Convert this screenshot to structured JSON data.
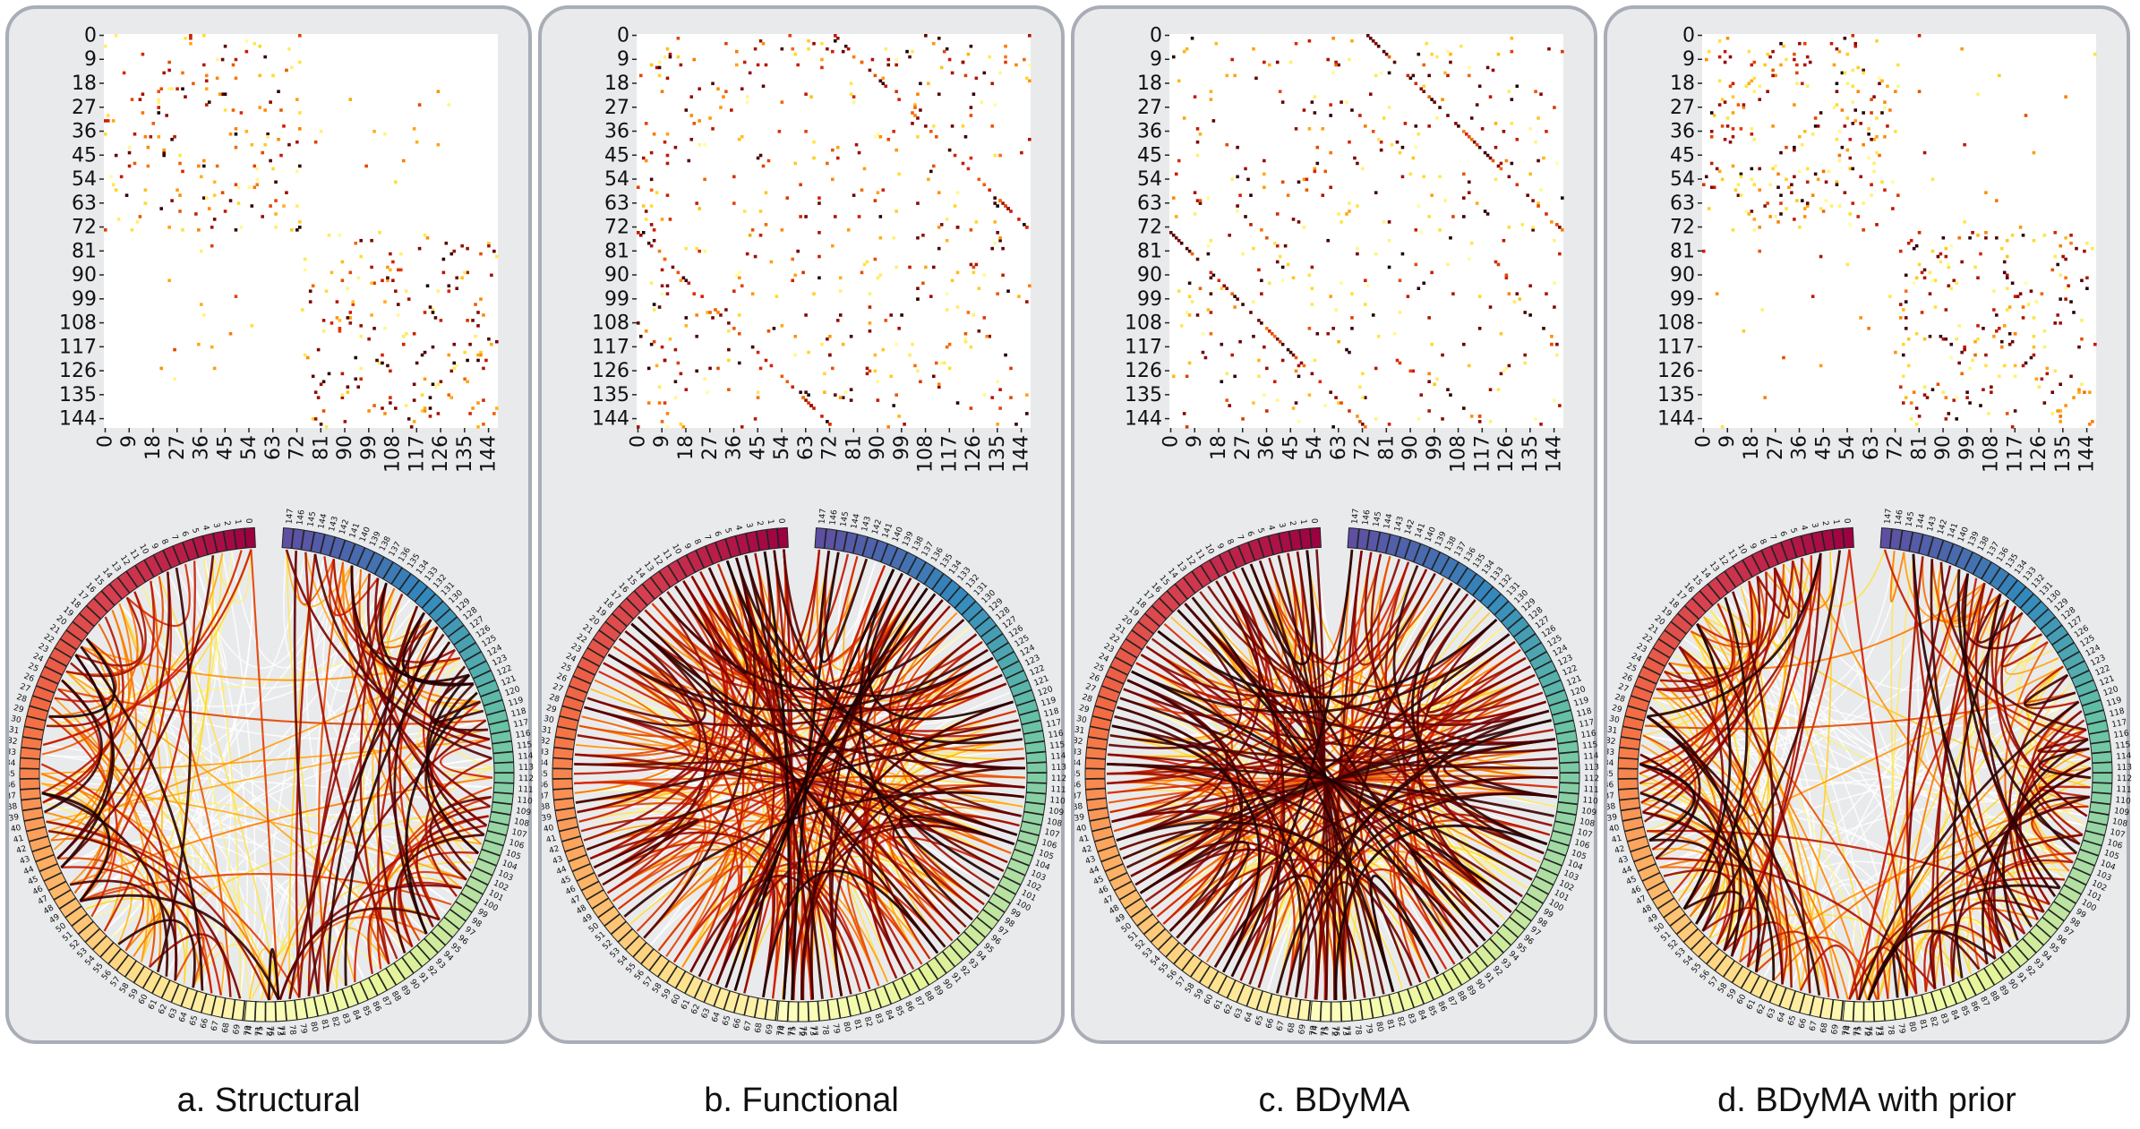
{
  "figure": {
    "panels": [
      {
        "id": "a",
        "caption": "a. Structural",
        "mode": "structural",
        "seed": 11
      },
      {
        "id": "b",
        "caption": "b. Functional",
        "mode": "functional",
        "seed": 23
      },
      {
        "id": "c",
        "caption": "c. BDyMA",
        "mode": "bdyma",
        "seed": 37
      },
      {
        "id": "d",
        "caption": "d. BDyMA with prior",
        "mode": "prior",
        "seed": 53
      }
    ],
    "matrix": {
      "size": 148,
      "tick_labels": [
        "0",
        "9",
        "18",
        "27",
        "36",
        "45",
        "54",
        "63",
        "72",
        "81",
        "90",
        "99",
        "108",
        "117",
        "126",
        "135",
        "144"
      ]
    },
    "circos": {
      "node_count": 148,
      "left_hemisphere_range": [
        0,
        73
      ],
      "right_hemisphere_range": [
        74,
        147
      ]
    },
    "colors": {
      "panel_background": "#e9eaec",
      "panel_border": "#a9adb6",
      "heat_low": "#ffff9a",
      "heat_high": "#1a0000"
    }
  }
}
